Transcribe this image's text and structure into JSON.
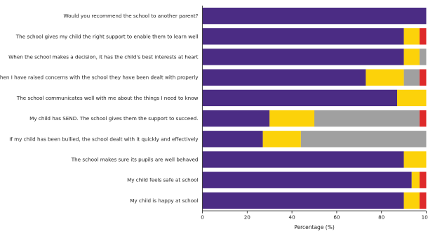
{
  "chart_data": {
    "type": "bar",
    "orientation": "horizontal",
    "stacked": true,
    "title": "",
    "xlabel": "Percentage (%)",
    "ylabel": "",
    "xlim": [
      0,
      100
    ],
    "xticks": [
      "0",
      "20",
      "40",
      "60",
      "80",
      "100"
    ],
    "grid": false,
    "legend": "none",
    "categories": [
      "Would you recommend the school to another parent?",
      "The school gives my child the right support to enable them to learn well",
      "When the school makes a decision, it has the child's best interests at heart",
      "When I have raised concerns with the school they have been dealt with properly",
      "The school communicates well with me about the things I need to know",
      "My child has SEND. The school gives them the support to succeed.",
      "If my child has been bullied, the school dealt with it quickly and effectively",
      "The school makes sure its pupils are well behaved",
      "My child feels safe at school",
      "My child is happy at school"
    ],
    "series": [
      {
        "color": "#4b2c84",
        "values": [
          100,
          90,
          90,
          73,
          87,
          30,
          27,
          90,
          93.5,
          90
        ]
      },
      {
        "color": "#fcd20a",
        "values": [
          0,
          7,
          7,
          17,
          13,
          20,
          17,
          10,
          3.5,
          7
        ]
      },
      {
        "color": "#a0a0a0",
        "values": [
          0,
          0,
          3,
          7,
          0,
          47,
          56,
          0,
          0,
          0
        ]
      },
      {
        "color": "#de2a2a",
        "values": [
          0,
          3,
          0,
          3,
          0,
          3,
          0,
          0,
          3,
          3
        ]
      }
    ]
  }
}
